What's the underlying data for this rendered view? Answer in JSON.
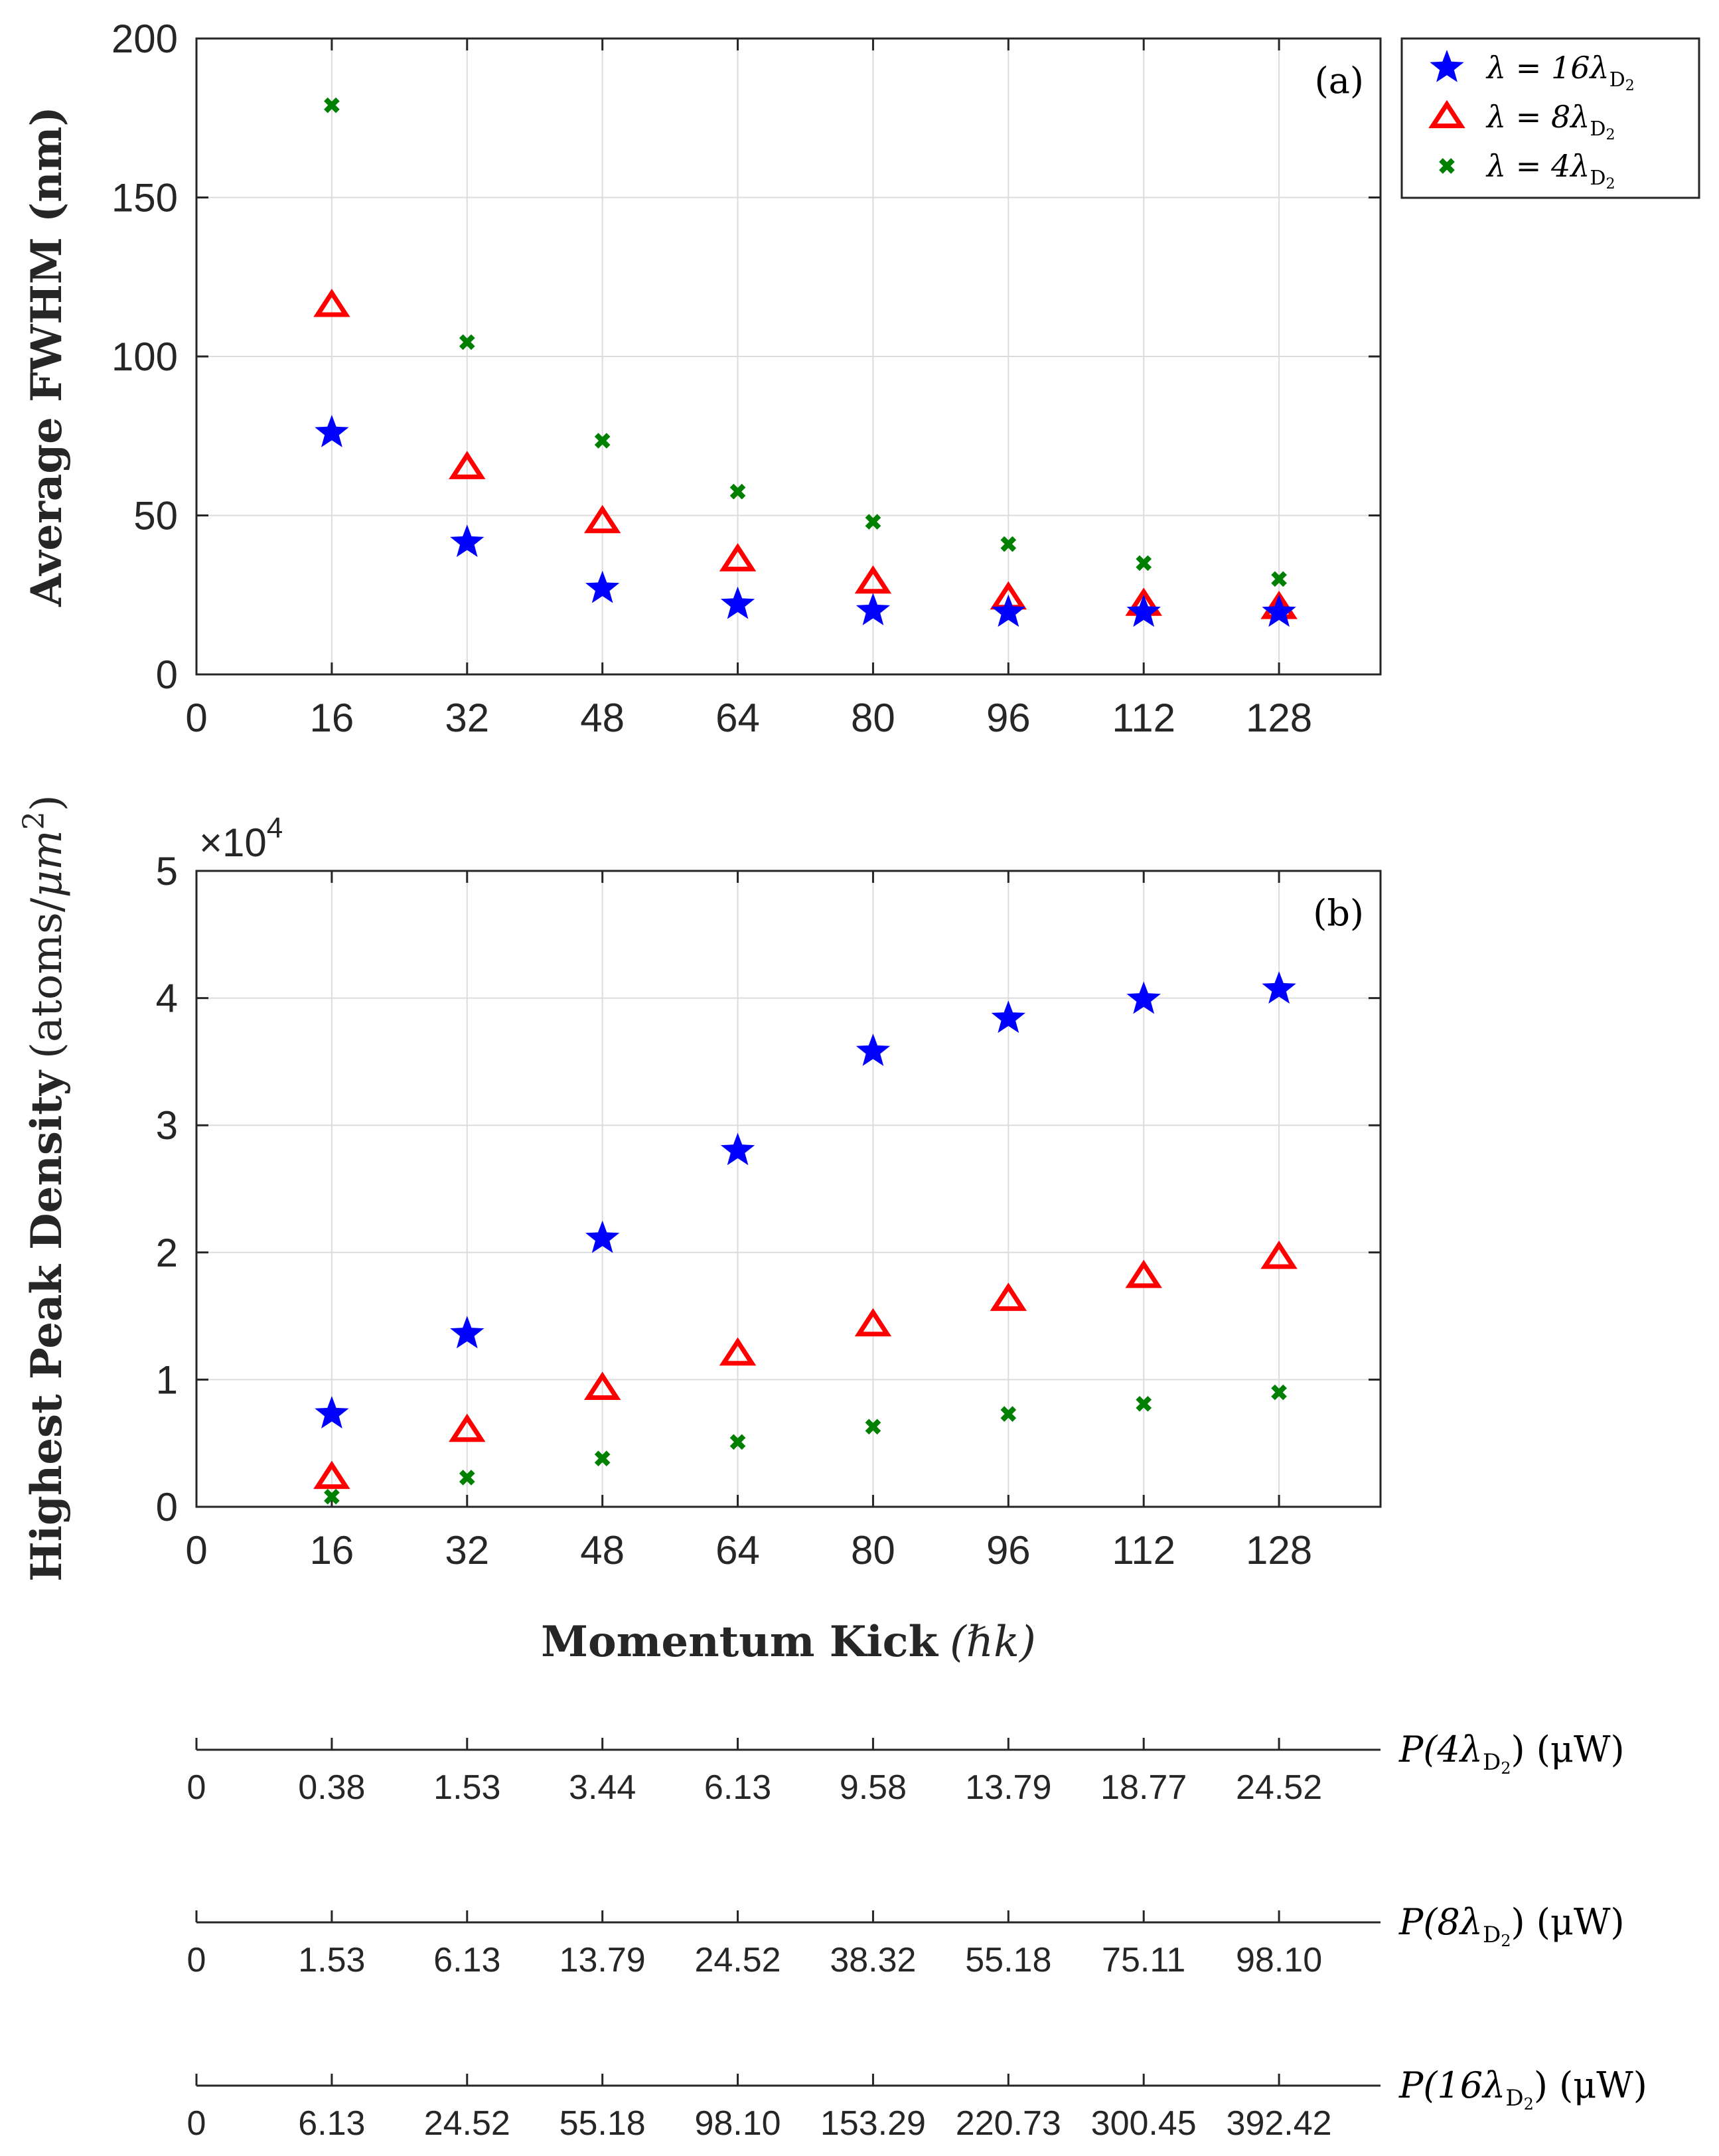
{
  "chart_data": [
    {
      "type": "scatter",
      "panel_label": "(a)",
      "ylabel": "Average FWHM (nm)",
      "xlim": [
        0,
        140
      ],
      "ylim": [
        0,
        200
      ],
      "xticks": [
        0,
        16,
        32,
        48,
        64,
        80,
        96,
        112,
        128
      ],
      "xtick_labels": [
        "0",
        "16",
        "32",
        "48",
        "64",
        "80",
        "96",
        "112",
        "128"
      ],
      "yticks": [
        0,
        50,
        100,
        150,
        200
      ],
      "ytick_labels": [
        "0",
        "50",
        "100",
        "150",
        "200"
      ],
      "grid": true,
      "x": [
        16,
        32,
        48,
        64,
        80,
        96,
        112,
        128
      ],
      "series": [
        {
          "name": "λ = 16λD2",
          "marker": "star",
          "color": "#0000ff",
          "values": [
            76,
            41.5,
            27,
            22,
            20,
            19.5,
            19.5,
            19.5
          ]
        },
        {
          "name": "λ = 8λD2",
          "marker": "triangle",
          "color": "#ff0000",
          "values": [
            116,
            65,
            48,
            36,
            29,
            24,
            22,
            21
          ]
        },
        {
          "name": "λ = 4λD2",
          "marker": "x",
          "color": "#008000",
          "values": [
            179,
            104.5,
            73.5,
            57.5,
            48,
            41,
            35,
            30
          ]
        }
      ]
    },
    {
      "type": "scatter",
      "panel_label": "(b)",
      "ylabel": "Highest Peak Density (atoms/μm²)",
      "ylabel_main": "Highest Peak Density",
      "ylabel_units_prefix": "(atoms/",
      "ylabel_units_mu": "μm",
      "ylabel_units_exp": "2",
      "ylabel_units_suffix": ")",
      "multiplier_prefix": "×10",
      "multiplier_exp": "4",
      "xlim": [
        0,
        140
      ],
      "ylim": [
        0,
        5
      ],
      "xticks": [
        0,
        16,
        32,
        48,
        64,
        80,
        96,
        112,
        128
      ],
      "xtick_labels": [
        "0",
        "16",
        "32",
        "48",
        "64",
        "80",
        "96",
        "112",
        "128"
      ],
      "yticks": [
        0,
        1,
        2,
        3,
        4,
        5
      ],
      "ytick_labels": [
        "0",
        "1",
        "2",
        "3",
        "4",
        "5"
      ],
      "grid": true,
      "x": [
        16,
        32,
        48,
        64,
        80,
        96,
        112,
        128
      ],
      "series": [
        {
          "name": "λ = 16λD2",
          "marker": "star",
          "color": "#0000ff",
          "values": [
            0.73,
            1.36,
            2.11,
            2.8,
            3.58,
            3.84,
            3.99,
            4.07
          ]
        },
        {
          "name": "λ = 8λD2",
          "marker": "triangle",
          "color": "#ff0000",
          "values": [
            0.23,
            0.6,
            0.93,
            1.2,
            1.43,
            1.63,
            1.81,
            1.96
          ]
        },
        {
          "name": "λ = 4λD2",
          "marker": "x",
          "color": "#008000",
          "values": [
            0.08,
            0.23,
            0.38,
            0.51,
            0.63,
            0.73,
            0.81,
            0.9
          ]
        }
      ],
      "xlabel": "Momentum Kick (ℏk)",
      "xlabel_main": "Momentum Kick",
      "xlabel_units": "(ℏk)"
    }
  ],
  "legend": {
    "position": "outside-top-right",
    "entries": [
      {
        "lhs": "λ = 16",
        "sym": "λ",
        "sub": "D",
        "subsub": "2",
        "marker": "star",
        "color": "#0000ff"
      },
      {
        "lhs": "λ = 8",
        "sym": "λ",
        "sub": "D",
        "subsub": "2",
        "marker": "triangle",
        "color": "#ff0000"
      },
      {
        "lhs": "λ = 4",
        "sym": "λ",
        "sub": "D",
        "subsub": "2",
        "marker": "x",
        "color": "#008000"
      }
    ]
  },
  "power_axes": [
    {
      "label_prefix": "P(4",
      "label_sym": "λ",
      "label_sub": "D",
      "label_subsub": "2",
      "label_units": ") (μW)",
      "tick_labels": [
        "0",
        "0.38",
        "1.53",
        "3.44",
        "6.13",
        "9.58",
        "13.79",
        "18.77",
        "24.52"
      ]
    },
    {
      "label_prefix": "P(8",
      "label_sym": "λ",
      "label_sub": "D",
      "label_subsub": "2",
      "label_units": ") (μW)",
      "tick_labels": [
        "0",
        "1.53",
        "6.13",
        "13.79",
        "24.52",
        "38.32",
        "55.18",
        "75.11",
        "98.10"
      ]
    },
    {
      "label_prefix": "P(16",
      "label_sym": "λ",
      "label_sub": "D",
      "label_subsub": "2",
      "label_units": ") (μW)",
      "tick_labels": [
        "0",
        "6.13",
        "24.52",
        "55.18",
        "98.10",
        "153.29",
        "220.73",
        "300.45",
        "392.42"
      ]
    }
  ]
}
